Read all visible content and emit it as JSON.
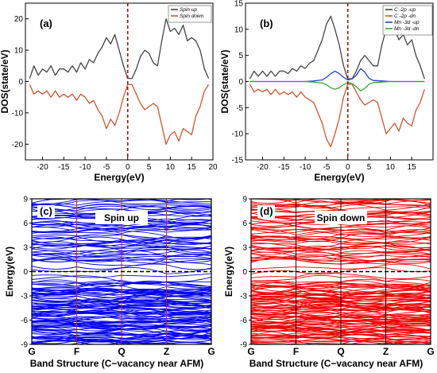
{
  "chart_data": [
    {
      "panel": "(a)",
      "type": "line",
      "xlabel": "Energy(eV)",
      "ylabel": "DOS(state/eV)",
      "xlim": [
        -24,
        20
      ],
      "ylim": [
        -25,
        25
      ],
      "xticks": [
        -20,
        -15,
        -10,
        -5,
        0,
        5,
        10,
        15,
        20
      ],
      "yticks": [
        -20,
        -10,
        0,
        10,
        20
      ],
      "fermi_level": 0,
      "legend_position": "top-right",
      "series": [
        {
          "name": "Spin up",
          "color": "#444444",
          "x": [
            -23,
            -22,
            -21,
            -20,
            -19,
            -18,
            -17,
            -16,
            -15,
            -14,
            -13,
            -12,
            -11,
            -10,
            -9,
            -8,
            -7,
            -6,
            -5,
            -4,
            -3,
            -2,
            -1,
            0,
            1,
            2,
            3,
            4,
            5,
            6,
            7,
            8,
            9,
            10,
            11,
            12,
            13,
            14,
            15,
            16,
            17,
            18,
            19
          ],
          "y": [
            1,
            5,
            2,
            4,
            3,
            5,
            2,
            4,
            4,
            3,
            5,
            3,
            6,
            4,
            7,
            6,
            9,
            11,
            14,
            12,
            15,
            10,
            5,
            1,
            1,
            4,
            8,
            10,
            9,
            6,
            5,
            13,
            20,
            16,
            17,
            15,
            18,
            13,
            14,
            13,
            10,
            4,
            1
          ]
        },
        {
          "name": "Spin down",
          "color": "#cc5533",
          "x": [
            -23,
            -22,
            -21,
            -20,
            -19,
            -18,
            -17,
            -16,
            -15,
            -14,
            -13,
            -12,
            -11,
            -10,
            -9,
            -8,
            -7,
            -6,
            -5,
            -4,
            -3,
            -2,
            -1,
            0,
            1,
            2,
            3,
            4,
            5,
            6,
            7,
            8,
            9,
            10,
            11,
            12,
            13,
            14,
            15,
            16,
            17,
            18,
            19
          ],
          "y": [
            -1,
            -4,
            -3,
            -4,
            -3,
            -5,
            -3,
            -5,
            -4,
            -5,
            -4,
            -6,
            -4,
            -5,
            -7,
            -6,
            -9,
            -11,
            -15,
            -12,
            -14,
            -10,
            -5,
            -1,
            -1,
            -4,
            -7,
            -9,
            -8,
            -7,
            -8,
            -14,
            -20,
            -17,
            -16,
            -19,
            -15,
            -16,
            -17,
            -11,
            -8,
            -3,
            -1
          ]
        }
      ]
    },
    {
      "panel": "(b)",
      "type": "line",
      "xlabel": "Energy(eV)",
      "ylabel": "DOS(state/eV)",
      "xlim": [
        -24,
        20
      ],
      "ylim": [
        -15,
        15
      ],
      "xticks": [
        -20,
        -15,
        -10,
        -5,
        0,
        5,
        10,
        15
      ],
      "yticks": [
        -15,
        -10,
        -5,
        0,
        5,
        10,
        15
      ],
      "fermi_level": 0,
      "legend_position": "top-right",
      "series": [
        {
          "name": "C -2p -up",
          "color": "#444444",
          "x": [
            -23,
            -22,
            -21,
            -20,
            -19,
            -18,
            -17,
            -16,
            -15,
            -14,
            -13,
            -12,
            -11,
            -10,
            -9,
            -8,
            -7,
            -6,
            -5,
            -4,
            -3,
            -2,
            -1,
            0,
            1,
            2,
            3,
            4,
            5,
            6,
            7,
            8,
            9,
            10,
            11,
            12,
            13,
            14,
            15,
            16,
            17,
            18
          ],
          "y": [
            0.5,
            2,
            1,
            2,
            1,
            2,
            1,
            2,
            2,
            1.5,
            2.5,
            2,
            3,
            2.5,
            3.5,
            4,
            6,
            8,
            11,
            12.5,
            10,
            7,
            3,
            0.5,
            0.5,
            2,
            4,
            5,
            4,
            3,
            3,
            7,
            10,
            9,
            10,
            8,
            9,
            7,
            8,
            5,
            3,
            0.5
          ]
        },
        {
          "name": "C -2p -dn",
          "color": "#cc5533",
          "x": [
            -23,
            -22,
            -21,
            -20,
            -19,
            -18,
            -17,
            -16,
            -15,
            -14,
            -13,
            -12,
            -11,
            -10,
            -9,
            -8,
            -7,
            -6,
            -5,
            -4,
            -3,
            -2,
            -1,
            0,
            1,
            2,
            3,
            4,
            5,
            6,
            7,
            8,
            9,
            10,
            11,
            12,
            13,
            14,
            15,
            16,
            17,
            18
          ],
          "y": [
            -0.5,
            -2,
            -1.5,
            -2,
            -1.5,
            -2.5,
            -1.5,
            -2.5,
            -2,
            -2.5,
            -2,
            -3,
            -2,
            -3,
            -3.5,
            -4,
            -6,
            -8,
            -11,
            -12.5,
            -10,
            -7,
            -3,
            -0.5,
            -0.5,
            -2,
            -3.5,
            -4.5,
            -4,
            -3.5,
            -4,
            -7,
            -10,
            -9,
            -8,
            -9.5,
            -7,
            -8,
            -8.5,
            -5.5,
            -4,
            -1.5
          ]
        },
        {
          "name": "Mn -3d -up",
          "color": "#2244cc",
          "x": [
            -23,
            -20,
            -15,
            -10,
            -8,
            -6,
            -5,
            -4,
            -3,
            -2,
            -1,
            0,
            1,
            2,
            3,
            4,
            5,
            6,
            8,
            10,
            15,
            18
          ],
          "y": [
            0,
            0,
            0,
            0,
            0.1,
            0.3,
            0.8,
            1.5,
            2,
            1.5,
            0.8,
            0.3,
            0.5,
            1.2,
            2.5,
            1.8,
            0.6,
            0.2,
            0.1,
            0,
            0,
            0
          ]
        },
        {
          "name": "Mn -3d -dn",
          "color": "#33aa33",
          "x": [
            -23,
            -20,
            -15,
            -10,
            -8,
            -6,
            -5,
            -4,
            -3,
            -2,
            -1,
            0,
            1,
            2,
            3,
            4,
            5,
            6,
            8,
            10,
            15,
            18
          ],
          "y": [
            0,
            0,
            0,
            0,
            -0.1,
            -0.3,
            -0.6,
            -1.2,
            -1.5,
            -1.2,
            -0.6,
            -0.2,
            -0.4,
            -1,
            -1.8,
            -1.3,
            -0.5,
            -0.2,
            -0.1,
            0,
            0,
            0
          ]
        }
      ]
    },
    {
      "panel": "(c)",
      "type": "line",
      "xlabel": "Band Structure (C−vacancy near AFM)",
      "ylabel": "Energy(eV)",
      "annotation": "Spin up",
      "ylim": [
        -9,
        9
      ],
      "yticks": [
        -9,
        -6,
        -3,
        0,
        3,
        6,
        9
      ],
      "kpoints": [
        "G",
        "F",
        "Q",
        "Z",
        "G"
      ],
      "band_color": "#0000ee",
      "fermi_level": 0
    },
    {
      "panel": "(d)",
      "type": "line",
      "xlabel": "Band Structure (C−vacancy near AFM)",
      "ylabel": "Energy(eV)",
      "annotation": "Spin down",
      "ylim": [
        -9,
        9
      ],
      "yticks": [
        -9,
        -6,
        -3,
        0,
        3,
        6,
        9
      ],
      "kpoints": [
        "G",
        "F",
        "Q",
        "Z",
        "G"
      ],
      "band_color": "#ee0000",
      "fermi_level": 0
    }
  ]
}
